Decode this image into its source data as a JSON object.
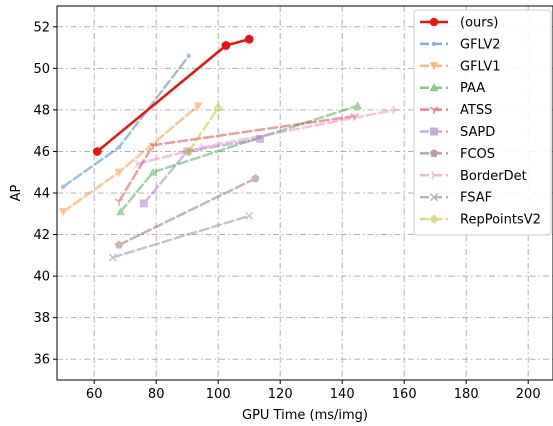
{
  "chart_data": {
    "type": "line",
    "xlabel": "GPU Time (ms/img)",
    "ylabel": "AP",
    "xlim": [
      48,
      208
    ],
    "ylim": [
      35,
      53
    ],
    "xticks": [
      "60",
      "80",
      "100",
      "120",
      "140",
      "160",
      "180",
      "200"
    ],
    "yticks": [
      "36",
      "38",
      "40",
      "42",
      "44",
      "46",
      "48",
      "50",
      "52"
    ],
    "grid": true,
    "legend_position": "top-right",
    "series": [
      {
        "name": "(ours)",
        "color": "#ee1111",
        "marker": "circle",
        "alpha": 1.0,
        "width": 2.5,
        "x": [
          61,
          102.5,
          110
        ],
        "y": [
          46.0,
          51.1,
          51.4
        ]
      },
      {
        "name": "GFLV2",
        "color": "#1f77b4",
        "marker": "point",
        "alpha": 0.45,
        "width": 2.5,
        "x": [
          50,
          68,
          90.5
        ],
        "y": [
          44.3,
          46.2,
          50.6
        ]
      },
      {
        "name": "GFLV1",
        "color": "#ff7f0e",
        "marker": "triangle-down",
        "alpha": 0.45,
        "width": 2.5,
        "x": [
          50,
          68,
          93.5
        ],
        "y": [
          43.1,
          45.0,
          48.2
        ]
      },
      {
        "name": "PAA",
        "color": "#2ca02c",
        "marker": "triangle-up",
        "alpha": 0.45,
        "width": 2.5,
        "x": [
          68.5,
          79,
          145
        ],
        "y": [
          43.1,
          45.0,
          48.2
        ]
      },
      {
        "name": "ATSS",
        "color": "#d62728",
        "marker": "tri-down",
        "alpha": 0.45,
        "width": 2.5,
        "x": [
          68,
          79,
          144
        ],
        "y": [
          43.6,
          46.3,
          47.7
        ]
      },
      {
        "name": "SAPD",
        "color": "#9467bd",
        "marker": "square",
        "alpha": 0.45,
        "width": 2.5,
        "x": [
          76,
          90,
          113.5
        ],
        "y": [
          43.5,
          46.0,
          46.6
        ]
      },
      {
        "name": "FCOS",
        "color": "#8c564b",
        "marker": "pentagon",
        "alpha": 0.45,
        "width": 2.5,
        "x": [
          68,
          112
        ],
        "y": [
          41.5,
          44.7
        ]
      },
      {
        "name": "BorderDet",
        "color": "#e377c2",
        "marker": "tri-right",
        "alpha": 0.45,
        "width": 2.5,
        "x": [
          74,
          95,
          157
        ],
        "y": [
          45.4,
          46.2,
          48.0
        ]
      },
      {
        "name": "FSAF",
        "color": "#7f7f7f",
        "marker": "x",
        "alpha": 0.45,
        "width": 2.5,
        "x": [
          66,
          110
        ],
        "y": [
          40.9,
          42.9
        ]
      },
      {
        "name": "RepPointsV2",
        "color": "#bcbd22",
        "marker": "diamond",
        "alpha": 0.45,
        "width": 2.5,
        "x": [
          90.5,
          100
        ],
        "y": [
          46.0,
          48.1
        ]
      }
    ]
  }
}
